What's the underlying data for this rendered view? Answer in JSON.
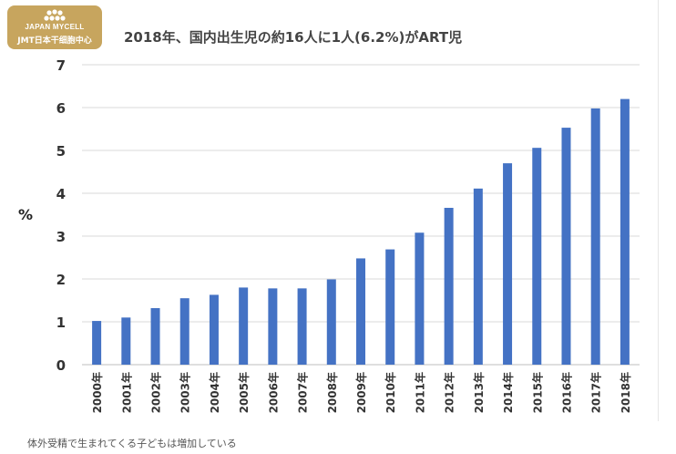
{
  "logo": {
    "line1": "JAPAN MYCELL",
    "line2": "JMT日本干细胞中心"
  },
  "caption": "体外受精で生まれてくる子どもは増加している",
  "colors": {
    "bar": "#4472c4",
    "logo_bg": "#c7a55e",
    "grid": "#d9d9d9"
  },
  "chart_data": {
    "type": "bar",
    "title": "2018年、国内出生児の約16人に1人(6.2%)がART児",
    "xlabel": "",
    "ylabel": "%",
    "ylim": [
      0,
      7
    ],
    "yticks": [
      0,
      1,
      2,
      3,
      4,
      5,
      6,
      7
    ],
    "grid": true,
    "categories": [
      "2000年",
      "2001年",
      "2002年",
      "2003年",
      "2004年",
      "2005年",
      "2006年",
      "2007年",
      "2008年",
      "2009年",
      "2010年",
      "2011年",
      "2012年",
      "2013年",
      "2014年",
      "2015年",
      "2016年",
      "2017年",
      "2018年"
    ],
    "values": [
      1.02,
      1.1,
      1.32,
      1.55,
      1.63,
      1.8,
      1.78,
      1.78,
      1.99,
      2.48,
      2.69,
      3.08,
      3.66,
      4.11,
      4.7,
      5.06,
      5.53,
      5.98,
      6.2
    ]
  }
}
